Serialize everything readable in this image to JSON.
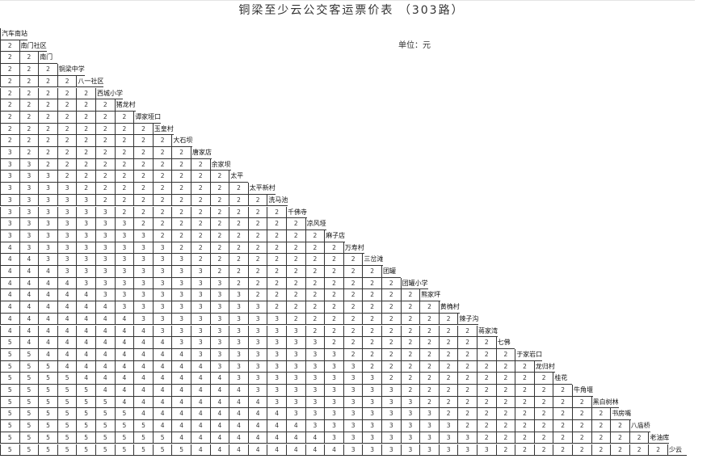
{
  "title": "铜梁至少云公交客运票价表 （303路）",
  "unit": "单位：元",
  "stations": [
    "汽车南站",
    "南门社区",
    "南门",
    "铜梁中学",
    "八一社区",
    "西城小学",
    "猪龙村",
    "谭家垭口",
    "玉皇村",
    "大石坝",
    "唐家店",
    "余家坝",
    "太平",
    "太平新村",
    "洗马池",
    "千佛寺",
    "凉风垭",
    "麻子店",
    "万寿村",
    "三岔滩",
    "团罐",
    "团罐小学",
    "熊家坪",
    "黄桷村",
    "辣子沟",
    "蒋家湾",
    "七佛",
    "于家岩口",
    "龙归村",
    "桂花",
    "牛角堰",
    "黑白树林",
    "书房嘴",
    "八庙桥",
    "老油库",
    "少云"
  ],
  "fares": [
    [],
    [
      2
    ],
    [
      2,
      2
    ],
    [
      2,
      2,
      2
    ],
    [
      2,
      2,
      2,
      2
    ],
    [
      2,
      2,
      2,
      2,
      2
    ],
    [
      2,
      2,
      2,
      2,
      2,
      2
    ],
    [
      2,
      2,
      2,
      2,
      2,
      2,
      2
    ],
    [
      2,
      2,
      2,
      2,
      2,
      2,
      2,
      2
    ],
    [
      2,
      2,
      2,
      2,
      2,
      2,
      2,
      2,
      2
    ],
    [
      3,
      2,
      2,
      2,
      2,
      2,
      2,
      2,
      2,
      2
    ],
    [
      3,
      3,
      2,
      2,
      2,
      2,
      2,
      2,
      2,
      2,
      2
    ],
    [
      3,
      3,
      3,
      2,
      2,
      2,
      2,
      2,
      2,
      2,
      2,
      2
    ],
    [
      3,
      3,
      3,
      3,
      2,
      2,
      2,
      2,
      2,
      2,
      2,
      2,
      2
    ],
    [
      3,
      3,
      3,
      3,
      3,
      2,
      2,
      2,
      2,
      2,
      2,
      2,
      2,
      2
    ],
    [
      3,
      3,
      3,
      3,
      3,
      3,
      2,
      2,
      2,
      2,
      2,
      2,
      2,
      2,
      2
    ],
    [
      3,
      3,
      3,
      3,
      3,
      3,
      3,
      2,
      2,
      2,
      2,
      2,
      2,
      2,
      2,
      2
    ],
    [
      3,
      3,
      3,
      3,
      3,
      3,
      3,
      3,
      2,
      2,
      2,
      2,
      2,
      2,
      2,
      2,
      2
    ],
    [
      4,
      3,
      3,
      3,
      3,
      3,
      3,
      3,
      3,
      2,
      2,
      2,
      2,
      2,
      2,
      2,
      2,
      2
    ],
    [
      4,
      4,
      3,
      3,
      3,
      3,
      3,
      3,
      3,
      3,
      2,
      2,
      2,
      2,
      2,
      2,
      2,
      2,
      2
    ],
    [
      4,
      4,
      4,
      3,
      3,
      3,
      3,
      3,
      3,
      3,
      3,
      2,
      2,
      2,
      2,
      2,
      2,
      2,
      2,
      2
    ],
    [
      4,
      4,
      4,
      4,
      3,
      3,
      3,
      3,
      3,
      3,
      3,
      3,
      2,
      2,
      2,
      2,
      2,
      2,
      2,
      2,
      2
    ],
    [
      4,
      4,
      4,
      4,
      4,
      3,
      3,
      3,
      3,
      3,
      3,
      3,
      3,
      2,
      2,
      2,
      2,
      2,
      2,
      2,
      2,
      2
    ],
    [
      4,
      4,
      4,
      4,
      4,
      4,
      3,
      3,
      3,
      3,
      3,
      3,
      3,
      3,
      2,
      2,
      2,
      2,
      2,
      2,
      2,
      2,
      2
    ],
    [
      4,
      4,
      4,
      4,
      4,
      4,
      4,
      3,
      3,
      3,
      3,
      3,
      3,
      3,
      3,
      2,
      2,
      2,
      2,
      2,
      2,
      2,
      2,
      2
    ],
    [
      4,
      4,
      4,
      4,
      4,
      4,
      4,
      4,
      3,
      3,
      3,
      3,
      3,
      3,
      3,
      3,
      2,
      2,
      2,
      2,
      2,
      2,
      2,
      2,
      2
    ],
    [
      5,
      4,
      4,
      4,
      4,
      4,
      4,
      4,
      4,
      3,
      3,
      3,
      3,
      3,
      3,
      3,
      3,
      2,
      2,
      2,
      2,
      2,
      2,
      2,
      2,
      2
    ],
    [
      5,
      5,
      4,
      4,
      4,
      4,
      4,
      4,
      4,
      4,
      3,
      3,
      3,
      3,
      3,
      3,
      3,
      3,
      2,
      2,
      2,
      2,
      2,
      2,
      2,
      2,
      2
    ],
    [
      5,
      5,
      5,
      4,
      4,
      4,
      4,
      4,
      4,
      4,
      4,
      3,
      3,
      3,
      3,
      3,
      3,
      3,
      3,
      2,
      2,
      2,
      2,
      2,
      2,
      2,
      2,
      2
    ],
    [
      5,
      5,
      5,
      5,
      4,
      4,
      4,
      4,
      4,
      4,
      4,
      4,
      3,
      3,
      3,
      3,
      3,
      3,
      3,
      3,
      2,
      2,
      2,
      2,
      2,
      2,
      2,
      2,
      2
    ],
    [
      5,
      5,
      5,
      5,
      5,
      4,
      4,
      4,
      4,
      4,
      4,
      4,
      4,
      3,
      3,
      3,
      3,
      3,
      3,
      3,
      3,
      2,
      2,
      2,
      2,
      2,
      2,
      2,
      2,
      2
    ],
    [
      5,
      5,
      5,
      5,
      5,
      5,
      4,
      4,
      4,
      4,
      4,
      4,
      4,
      4,
      3,
      3,
      3,
      3,
      3,
      3,
      3,
      3,
      2,
      2,
      2,
      2,
      2,
      2,
      2,
      2,
      2
    ],
    [
      5,
      5,
      5,
      5,
      5,
      5,
      5,
      4,
      4,
      4,
      4,
      4,
      4,
      4,
      4,
      3,
      3,
      3,
      3,
      3,
      3,
      3,
      3,
      2,
      2,
      2,
      2,
      2,
      2,
      2,
      2,
      2
    ],
    [
      5,
      5,
      5,
      5,
      5,
      5,
      5,
      5,
      4,
      4,
      4,
      4,
      4,
      4,
      4,
      4,
      3,
      3,
      3,
      3,
      3,
      3,
      3,
      3,
      2,
      2,
      2,
      2,
      2,
      2,
      2,
      2,
      2
    ],
    [
      5,
      5,
      5,
      5,
      5,
      5,
      5,
      5,
      5,
      4,
      4,
      4,
      4,
      4,
      4,
      4,
      4,
      3,
      3,
      3,
      3,
      3,
      3,
      3,
      3,
      2,
      2,
      2,
      2,
      2,
      2,
      2,
      2,
      2
    ],
    [
      5,
      5,
      5,
      5,
      5,
      5,
      5,
      5,
      5,
      5,
      4,
      4,
      4,
      4,
      4,
      4,
      4,
      4,
      3,
      3,
      3,
      3,
      3,
      3,
      3,
      3,
      2,
      2,
      2,
      2,
      2,
      2,
      2,
      2,
      2
    ]
  ]
}
